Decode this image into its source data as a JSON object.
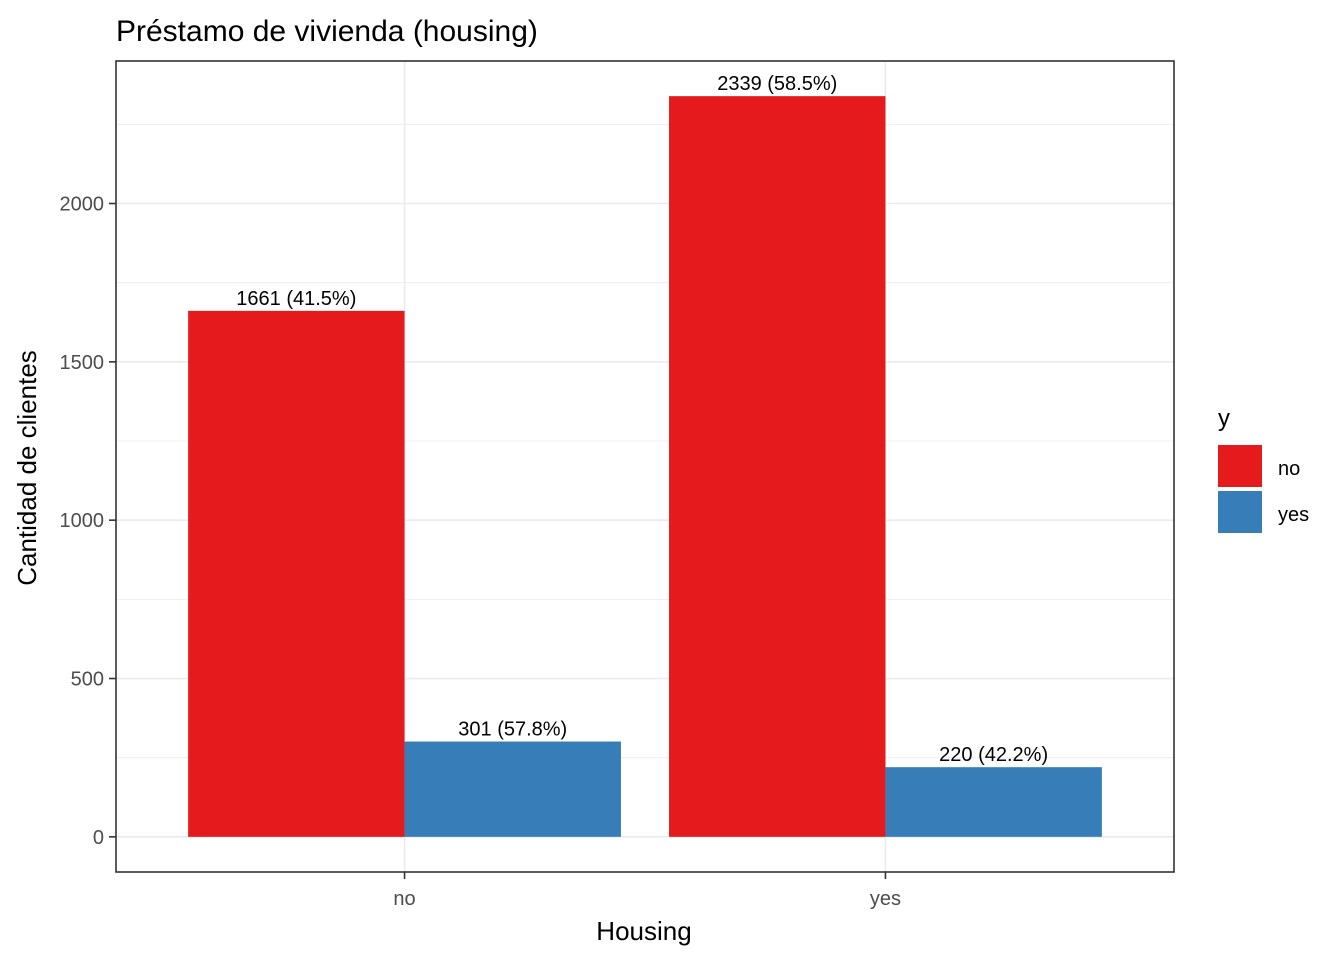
{
  "chart_data": {
    "type": "bar",
    "title": "Préstamo de vivienda (housing)",
    "xlabel": "Housing",
    "ylabel": "Cantidad de clientes",
    "categories": [
      "no",
      "yes"
    ],
    "series": [
      {
        "name": "no",
        "color": "#E41A1C",
        "values": [
          1661,
          2339
        ],
        "labels": [
          "1661 (41.5%)",
          "2339 (58.5%)"
        ]
      },
      {
        "name": "yes",
        "color": "#377EB8",
        "values": [
          301,
          220
        ],
        "labels": [
          "301 (57.8%)",
          "220 (42.2%)"
        ]
      }
    ],
    "ylim": [
      -111,
      2450
    ],
    "yticks": [
      0,
      500,
      1000,
      1500,
      2000
    ],
    "legend": {
      "title": "y",
      "position": "right"
    },
    "grid": true
  }
}
